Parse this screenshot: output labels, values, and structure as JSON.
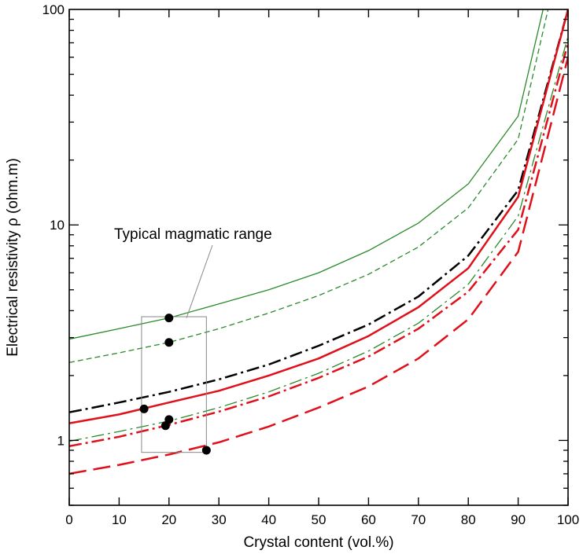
{
  "chart_data": {
    "type": "line",
    "title": "",
    "xlabel": "Crystal content (vol.%)",
    "ylabel": "Electrical resistivity ρ (ohm.m)",
    "xlim": [
      0,
      100
    ],
    "ylim": [
      0.5,
      100
    ],
    "yscale": "log",
    "grid": false,
    "legend": "none",
    "x_ticks": [
      0,
      10,
      20,
      30,
      40,
      50,
      60,
      70,
      80,
      90,
      100
    ],
    "x_tick_labels": [
      "0",
      "10",
      "20",
      "30",
      "40",
      "50",
      "60",
      "70",
      "80",
      "90",
      "100"
    ],
    "y_major_ticks": [
      1,
      10,
      100
    ],
    "y_tick_labels": [
      "1",
      "10",
      "100"
    ],
    "series": [
      {
        "color": "#2a8a2a",
        "style": "solid",
        "width": 1.3,
        "x": [
          0,
          10,
          20,
          30,
          40,
          50,
          60,
          70,
          80,
          90,
          95,
          100
        ],
        "y": [
          2.95,
          3.3,
          3.7,
          4.3,
          5.0,
          6.0,
          7.6,
          10.2,
          15.5,
          32,
          100,
          100
        ]
      },
      {
        "color": "#2a8a2a",
        "style": "dashed",
        "width": 1.3,
        "x": [
          0,
          10,
          20,
          30,
          40,
          50,
          60,
          70,
          80,
          90,
          96,
          100
        ],
        "y": [
          2.3,
          2.55,
          2.85,
          3.3,
          3.9,
          4.7,
          5.9,
          7.9,
          12.0,
          25,
          100,
          100
        ]
      },
      {
        "color": "#000000",
        "style": "dashdot",
        "width": 2.5,
        "x": [
          0,
          10,
          20,
          30,
          40,
          50,
          60,
          70,
          80,
          90,
          100
        ],
        "y": [
          1.35,
          1.5,
          1.68,
          1.92,
          2.25,
          2.75,
          3.45,
          4.65,
          7.2,
          14.5,
          100
        ]
      },
      {
        "color": "#e0101a",
        "style": "solid",
        "width": 2.5,
        "x": [
          0,
          10,
          20,
          30,
          40,
          50,
          60,
          70,
          80,
          90,
          100
        ],
        "y": [
          1.2,
          1.32,
          1.5,
          1.7,
          2.0,
          2.4,
          3.05,
          4.15,
          6.3,
          13.5,
          100
        ]
      },
      {
        "color": "#2a8a2a",
        "style": "dashdot",
        "width": 1.3,
        "x": [
          0,
          10,
          20,
          30,
          40,
          50,
          60,
          70,
          80,
          90,
          100
        ],
        "y": [
          0.99,
          1.1,
          1.23,
          1.42,
          1.68,
          2.05,
          2.6,
          3.5,
          5.3,
          11.0,
          75
        ]
      },
      {
        "color": "#e0101a",
        "style": "dashdot",
        "width": 2.5,
        "x": [
          0,
          10,
          20,
          30,
          40,
          50,
          60,
          70,
          80,
          90,
          100
        ],
        "y": [
          0.94,
          1.04,
          1.18,
          1.36,
          1.6,
          1.95,
          2.45,
          3.3,
          4.9,
          9.5,
          70
        ]
      },
      {
        "color": "#e0101a",
        "style": "longdash",
        "width": 2.5,
        "x": [
          0,
          10,
          20,
          30,
          40,
          50,
          60,
          70,
          80,
          90,
          100
        ],
        "y": [
          0.7,
          0.77,
          0.86,
          0.98,
          1.16,
          1.42,
          1.78,
          2.4,
          3.65,
          7.5,
          60
        ]
      }
    ],
    "points": [
      {
        "x": 20,
        "y": 3.7
      },
      {
        "x": 20,
        "y": 2.85
      },
      {
        "x": 15,
        "y": 1.4
      },
      {
        "x": 20,
        "y": 1.25
      },
      {
        "x": 19.3,
        "y": 1.17
      },
      {
        "x": 27.5,
        "y": 0.9
      }
    ],
    "annotations": [
      {
        "text": "Typical magmatic range",
        "box": {
          "x": [
            14.5,
            27.5
          ],
          "y": [
            0.88,
            3.75
          ]
        },
        "arrow_to": {
          "x": 23.5,
          "y": 3.7
        }
      }
    ]
  }
}
